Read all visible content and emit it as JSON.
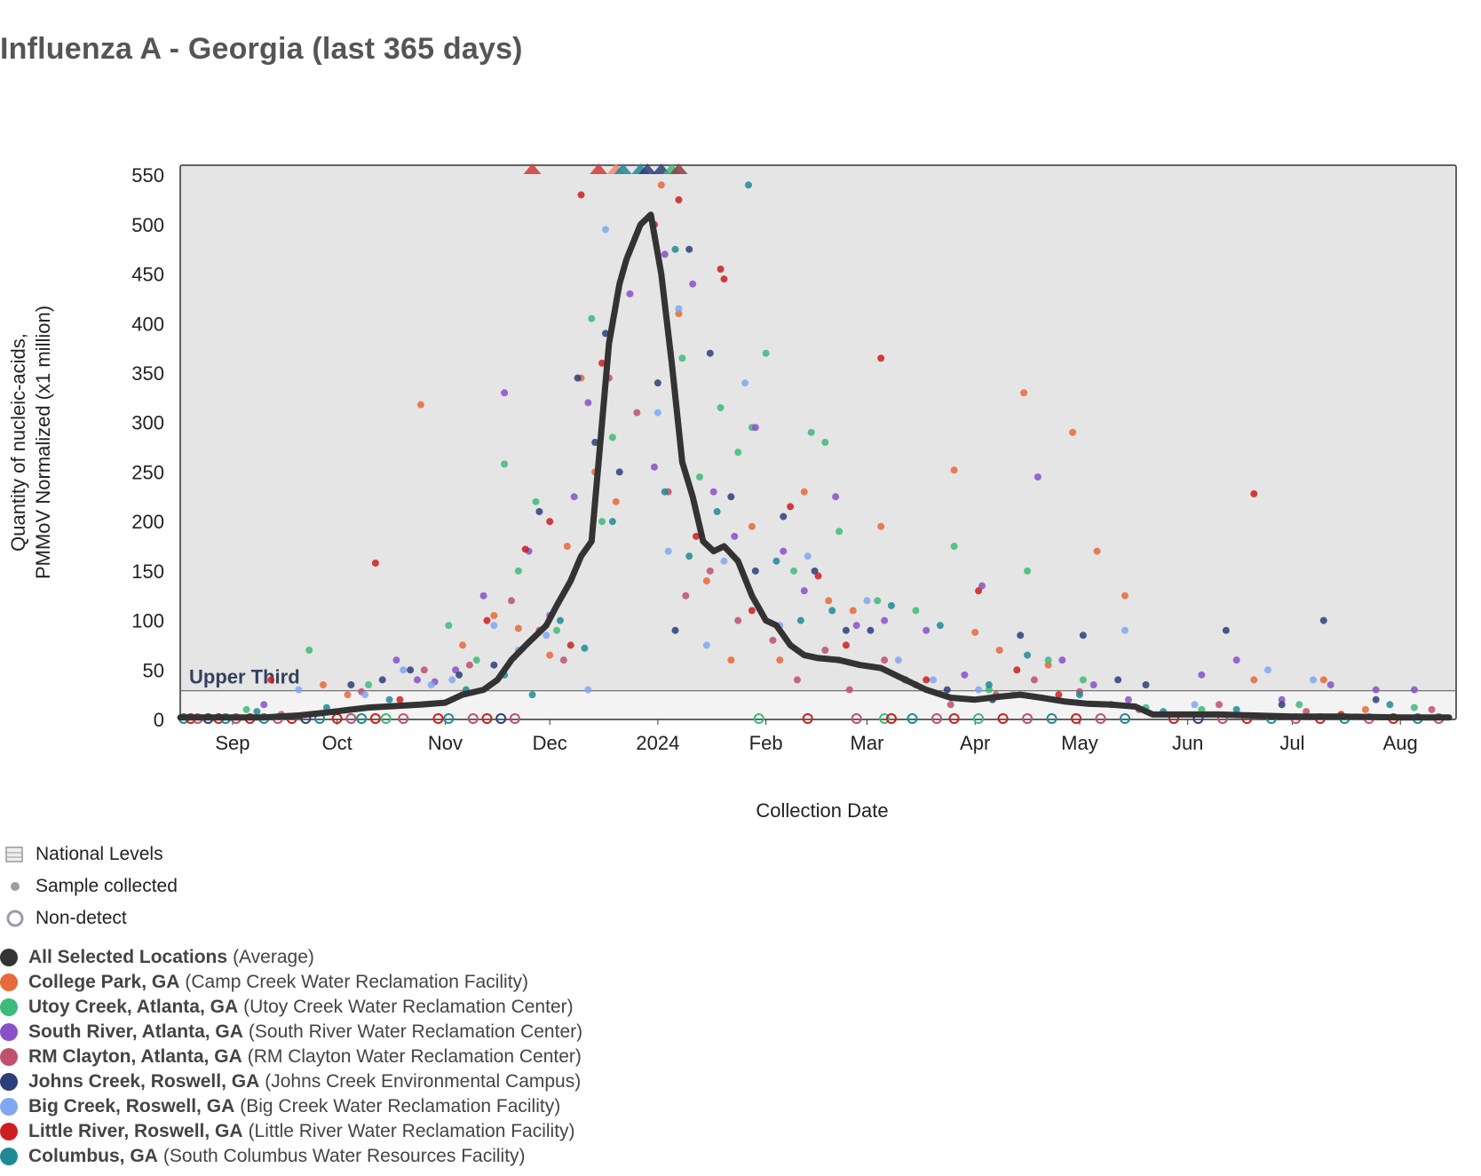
{
  "title": "Influenza A - Georgia (last 365 days)",
  "chart_data": {
    "type": "scatter",
    "xlabel": "Collection Date",
    "ylabel_lines": [
      "Quantity of nucleic-acids,",
      "PMMoV Normalized (x1 million)"
    ],
    "xlim": [
      "2023-08-17",
      "2024-08-17"
    ],
    "ylim": [
      0,
      560
    ],
    "yticks": [
      0,
      50,
      100,
      150,
      200,
      250,
      300,
      350,
      400,
      450,
      500,
      550
    ],
    "xticks": [
      {
        "label": "Sep",
        "date": "2023-09-01"
      },
      {
        "label": "Oct",
        "date": "2023-10-01"
      },
      {
        "label": "Nov",
        "date": "2023-11-01"
      },
      {
        "label": "Dec",
        "date": "2023-12-01"
      },
      {
        "label": "2024",
        "date": "2024-01-01"
      },
      {
        "label": "Feb",
        "date": "2024-02-01"
      },
      {
        "label": "Mar",
        "date": "2024-03-01"
      },
      {
        "label": "Apr",
        "date": "2024-04-01"
      },
      {
        "label": "May",
        "date": "2024-05-01"
      },
      {
        "label": "Jun",
        "date": "2024-06-01"
      },
      {
        "label": "Jul",
        "date": "2024-07-01"
      },
      {
        "label": "Aug",
        "date": "2024-08-01"
      }
    ],
    "national_level_band": {
      "label": "Upper Third",
      "threshold": 29
    },
    "average_line": {
      "name": "All Selected Locations",
      "color": "#333333",
      "x": [
        "2023-08-17",
        "2023-09-10",
        "2023-09-20",
        "2023-09-28",
        "2023-10-05",
        "2023-10-10",
        "2023-10-15",
        "2023-10-25",
        "2023-11-01",
        "2023-11-06",
        "2023-11-12",
        "2023-11-16",
        "2023-11-20",
        "2023-11-25",
        "2023-11-30",
        "2023-12-03",
        "2023-12-07",
        "2023-12-10",
        "2023-12-13",
        "2023-12-16",
        "2023-12-18",
        "2023-12-21",
        "2023-12-23",
        "2023-12-27",
        "2023-12-30",
        "2024-01-02",
        "2024-01-05",
        "2024-01-08",
        "2024-01-11",
        "2024-01-14",
        "2024-01-17",
        "2024-01-20",
        "2024-01-24",
        "2024-01-28",
        "2024-02-01",
        "2024-02-04",
        "2024-02-08",
        "2024-02-12",
        "2024-02-16",
        "2024-02-22",
        "2024-02-28",
        "2024-03-05",
        "2024-03-12",
        "2024-03-18",
        "2024-03-25",
        "2024-04-01",
        "2024-04-08",
        "2024-04-14",
        "2024-04-20",
        "2024-04-27",
        "2024-05-03",
        "2024-05-10",
        "2024-05-17",
        "2024-05-22",
        "2024-06-01",
        "2024-06-10",
        "2024-06-20",
        "2024-07-01",
        "2024-07-15",
        "2024-08-01",
        "2024-08-15"
      ],
      "y": [
        2,
        2,
        4,
        7,
        10,
        12,
        13,
        15,
        17,
        25,
        30,
        40,
        60,
        78,
        95,
        115,
        140,
        165,
        180,
        300,
        380,
        440,
        465,
        500,
        510,
        450,
        360,
        260,
        225,
        180,
        170,
        175,
        160,
        125,
        100,
        95,
        75,
        65,
        62,
        60,
        55,
        52,
        40,
        30,
        22,
        20,
        23,
        25,
        22,
        18,
        16,
        15,
        13,
        5,
        5,
        5,
        4,
        3,
        3,
        2,
        2
      ]
    },
    "above_range_markers": {
      "description_shown": "triangles at top edge",
      "points": [
        {
          "date": "2023-11-26",
          "color": "#d13b3b"
        },
        {
          "date": "2023-12-15",
          "color": "#d13b3b"
        },
        {
          "date": "2023-12-20",
          "color": "#ee8870"
        },
        {
          "date": "2023-12-22",
          "color": "#1f8a95"
        },
        {
          "date": "2023-12-27",
          "color": "#1f8a95"
        },
        {
          "date": "2023-12-29",
          "color": "#2c3e7a"
        },
        {
          "date": "2024-01-02",
          "color": "#2c3e7a"
        },
        {
          "date": "2024-01-05",
          "color": "#3dbb7a"
        },
        {
          "date": "2024-01-07",
          "color": "#8a3f3f"
        }
      ]
    },
    "series": [
      {
        "name": "College Park, GA",
        "color": "#e8693a",
        "x": [
          "2023-09-27",
          "2023-10-04",
          "2023-10-25",
          "2023-11-06",
          "2023-11-15",
          "2023-11-22",
          "2023-12-01",
          "2023-12-06",
          "2023-12-10",
          "2023-12-14",
          "2023-12-20",
          "2024-01-02",
          "2024-01-07",
          "2024-01-15",
          "2024-01-22",
          "2024-01-28",
          "2024-02-05",
          "2024-02-12",
          "2024-02-19",
          "2024-02-26",
          "2024-03-05",
          "2024-03-12",
          "2024-03-26",
          "2024-04-01",
          "2024-04-08",
          "2024-04-15",
          "2024-04-22",
          "2024-04-29",
          "2024-05-06",
          "2024-05-14",
          "2024-06-20",
          "2024-07-10",
          "2024-07-22"
        ],
        "y": [
          35,
          25,
          318,
          75,
          105,
          92,
          65,
          175,
          345,
          250,
          220,
          540,
          410,
          140,
          60,
          195,
          60,
          230,
          120,
          110,
          195,
          40,
          252,
          88,
          70,
          330,
          55,
          290,
          170,
          125,
          40,
          40,
          10
        ]
      },
      {
        "name": "Utoy Creek, Atlanta, GA",
        "color": "#3dbb7a",
        "x": [
          "2023-09-05",
          "2023-09-23",
          "2023-10-10",
          "2023-11-02",
          "2023-11-10",
          "2023-11-18",
          "2023-11-22",
          "2023-11-27",
          "2023-12-03",
          "2023-12-13",
          "2023-12-16",
          "2023-12-19",
          "2024-01-08",
          "2024-01-13",
          "2024-01-19",
          "2024-01-24",
          "2024-01-28",
          "2024-02-01",
          "2024-02-09",
          "2024-02-14",
          "2024-02-18",
          "2024-02-22",
          "2024-03-04",
          "2024-03-15",
          "2024-03-26",
          "2024-04-05",
          "2024-04-16",
          "2024-04-22",
          "2024-05-02",
          "2024-05-20",
          "2024-06-05",
          "2024-07-03",
          "2024-08-05"
        ],
        "y": [
          10,
          70,
          35,
          95,
          60,
          258,
          150,
          220,
          90,
          405,
          200,
          285,
          365,
          245,
          315,
          270,
          295,
          370,
          150,
          290,
          280,
          190,
          120,
          110,
          175,
          30,
          150,
          60,
          40,
          12,
          10,
          15,
          12
        ]
      },
      {
        "name": "South River, Atlanta, GA",
        "color": "#8a50c8",
        "x": [
          "2023-09-10",
          "2023-10-18",
          "2023-10-24",
          "2023-10-29",
          "2023-11-04",
          "2023-11-12",
          "2023-11-18",
          "2023-11-25",
          "2023-12-01",
          "2023-12-08",
          "2023-12-12",
          "2023-12-24",
          "2023-12-31",
          "2024-01-03",
          "2024-01-11",
          "2024-01-17",
          "2024-01-23",
          "2024-01-29",
          "2024-02-06",
          "2024-02-12",
          "2024-02-21",
          "2024-02-27",
          "2024-03-06",
          "2024-03-18",
          "2024-03-29",
          "2024-04-03",
          "2024-04-19",
          "2024-04-26",
          "2024-05-05",
          "2024-05-15",
          "2024-06-05",
          "2024-06-15",
          "2024-06-28",
          "2024-07-12",
          "2024-07-25",
          "2024-08-05"
        ],
        "y": [
          15,
          60,
          40,
          38,
          50,
          125,
          330,
          170,
          105,
          225,
          320,
          430,
          255,
          470,
          440,
          230,
          185,
          295,
          170,
          130,
          225,
          95,
          100,
          90,
          45,
          135,
          245,
          60,
          35,
          20,
          45,
          60,
          20,
          35,
          30,
          30
        ]
      },
      {
        "name": "RM Clayton, Atlanta, GA",
        "color": "#c0506e",
        "x": [
          "2023-09-15",
          "2023-10-08",
          "2023-10-26",
          "2023-11-08",
          "2023-11-20",
          "2023-11-28",
          "2023-12-05",
          "2023-12-18",
          "2023-12-26",
          "2024-01-04",
          "2024-01-09",
          "2024-01-16",
          "2024-01-24",
          "2024-02-03",
          "2024-02-10",
          "2024-02-18",
          "2024-02-25",
          "2024-03-06",
          "2024-03-15",
          "2024-03-25",
          "2024-04-07",
          "2024-04-18",
          "2024-05-01",
          "2024-05-18",
          "2024-06-10",
          "2024-07-05",
          "2024-08-10"
        ],
        "y": [
          5,
          28,
          50,
          55,
          120,
          90,
          60,
          345,
          310,
          230,
          125,
          150,
          100,
          80,
          40,
          70,
          30,
          60,
          35,
          15,
          25,
          40,
          28,
          10,
          15,
          8,
          10
        ]
      },
      {
        "name": "Johns Creek, Roswell, GA",
        "color": "#2c3e7a",
        "x": [
          "2023-10-05",
          "2023-10-14",
          "2023-10-22",
          "2023-11-05",
          "2023-11-15",
          "2023-11-28",
          "2023-12-09",
          "2023-12-14",
          "2023-12-17",
          "2023-12-21",
          "2024-01-01",
          "2024-01-06",
          "2024-01-10",
          "2024-01-16",
          "2024-01-22",
          "2024-01-29",
          "2024-02-06",
          "2024-02-15",
          "2024-02-24",
          "2024-03-02",
          "2024-03-12",
          "2024-03-24",
          "2024-04-06",
          "2024-04-14",
          "2024-05-02",
          "2024-05-12",
          "2024-05-20",
          "2024-06-12",
          "2024-06-28",
          "2024-07-10",
          "2024-07-25"
        ],
        "y": [
          35,
          40,
          50,
          45,
          55,
          210,
          345,
          280,
          390,
          250,
          340,
          90,
          475,
          370,
          225,
          150,
          205,
          150,
          90,
          90,
          40,
          30,
          20,
          85,
          85,
          40,
          35,
          90,
          15,
          100,
          20
        ]
      },
      {
        "name": "Big Creek, Roswell, GA",
        "color": "#7fa8f0",
        "x": [
          "2023-09-20",
          "2023-10-09",
          "2023-10-20",
          "2023-10-28",
          "2023-11-03",
          "2023-11-15",
          "2023-11-22",
          "2023-11-30",
          "2023-12-12",
          "2023-12-17",
          "2024-01-01",
          "2024-01-04",
          "2024-01-07",
          "2024-01-15",
          "2024-01-20",
          "2024-01-26",
          "2024-02-05",
          "2024-02-13",
          "2024-02-22",
          "2024-03-01",
          "2024-03-10",
          "2024-03-20",
          "2024-04-02",
          "2024-04-12",
          "2024-05-14",
          "2024-06-03",
          "2024-06-24",
          "2024-07-07"
        ],
        "y": [
          30,
          25,
          50,
          35,
          40,
          95,
          70,
          85,
          30,
          495,
          310,
          170,
          415,
          75,
          160,
          340,
          95,
          165,
          60,
          120,
          60,
          40,
          30,
          25,
          90,
          15,
          50,
          40
        ]
      },
      {
        "name": "Little River, Roswell, GA",
        "color": "#cc1f1f",
        "x": [
          "2023-09-12",
          "2023-10-12",
          "2023-10-19",
          "2023-11-13",
          "2023-11-24",
          "2023-12-01",
          "2023-12-07",
          "2023-12-10",
          "2023-12-16",
          "2023-12-31",
          "2024-01-07",
          "2024-01-12",
          "2024-01-19",
          "2024-01-20",
          "2024-01-28",
          "2024-02-08",
          "2024-02-16",
          "2024-02-24",
          "2024-03-05",
          "2024-03-18",
          "2024-04-02",
          "2024-04-13",
          "2024-04-25",
          "2024-05-10",
          "2024-06-20",
          "2024-07-15"
        ],
        "y": [
          40,
          158,
          20,
          100,
          172,
          200,
          75,
          530,
          360,
          500,
          525,
          185,
          455,
          445,
          110,
          215,
          145,
          75,
          365,
          40,
          130,
          50,
          25,
          15,
          228,
          5
        ]
      },
      {
        "name": "Columbus, GA",
        "color": "#1f8a95",
        "x": [
          "2023-09-08",
          "2023-09-28",
          "2023-10-16",
          "2023-11-07",
          "2023-11-18",
          "2023-11-26",
          "2023-12-04",
          "2023-12-11",
          "2023-12-19",
          "2024-01-03",
          "2024-01-06",
          "2024-01-10",
          "2024-01-18",
          "2024-01-27",
          "2024-02-04",
          "2024-02-11",
          "2024-02-20",
          "2024-03-08",
          "2024-03-22",
          "2024-04-05",
          "2024-04-16",
          "2024-05-01",
          "2024-05-25",
          "2024-06-15",
          "2024-07-29"
        ],
        "y": [
          8,
          12,
          20,
          30,
          45,
          25,
          100,
          72,
          200,
          230,
          475,
          165,
          210,
          540,
          160,
          100,
          110,
          115,
          95,
          35,
          65,
          25,
          8,
          10,
          15
        ]
      }
    ],
    "non_detects": {
      "dates": [
        "2023-08-18",
        "2023-08-20",
        "2023-08-22",
        "2023-08-25",
        "2023-08-28",
        "2023-08-30",
        "2023-09-02",
        "2023-09-06",
        "2023-09-10",
        "2023-09-14",
        "2023-09-18",
        "2023-09-22",
        "2023-09-26",
        "2023-10-01",
        "2023-10-05",
        "2023-10-08",
        "2023-10-12",
        "2023-10-15",
        "2023-10-20",
        "2023-10-30",
        "2023-11-02",
        "2023-11-09",
        "2023-11-13",
        "2023-11-17",
        "2023-11-21",
        "2024-01-30",
        "2024-02-13",
        "2024-02-27",
        "2024-03-06",
        "2024-03-08",
        "2024-03-14",
        "2024-03-21",
        "2024-03-26",
        "2024-04-02",
        "2024-04-09",
        "2024-04-16",
        "2024-04-23",
        "2024-04-30",
        "2024-05-07",
        "2024-05-14",
        "2024-05-28",
        "2024-06-04",
        "2024-06-11",
        "2024-06-18",
        "2024-06-25",
        "2024-07-02",
        "2024-07-09",
        "2024-07-16",
        "2024-07-23",
        "2024-07-30",
        "2024-08-06",
        "2024-08-12"
      ],
      "colors": [
        "#1f8a95",
        "#cc1f1f",
        "#c0506e",
        "#2c3e7a",
        "#cc1f1f",
        "#1f8a95",
        "#c0506e",
        "#cc1f1f",
        "#1f8a95",
        "#c0506e",
        "#cc1f1f",
        "#2c3e7a",
        "#1f8a95",
        "#cc1f1f",
        "#c0506e",
        "#1f8a95",
        "#cc1f1f",
        "#3dbb7a",
        "#c0506e",
        "#cc1f1f",
        "#1f8a95",
        "#c0506e",
        "#cc1f1f",
        "#2c3e7a",
        "#c0506e",
        "#3dbb7a",
        "#cc1f1f",
        "#c0506e",
        "#3dbb7a",
        "#cc1f1f",
        "#1f8a95",
        "#c0506e",
        "#cc1f1f",
        "#3dbb7a",
        "#cc1f1f",
        "#c0506e",
        "#1f8a95",
        "#cc1f1f",
        "#c0506e",
        "#1f8a95",
        "#cc1f1f",
        "#2c3e7a",
        "#c0506e",
        "#cc1f1f",
        "#1f8a95",
        "#c0506e",
        "#cc1f1f",
        "#1f8a95",
        "#c0506e",
        "#cc1f1f",
        "#1f8a95",
        "#c0506e"
      ]
    }
  },
  "legend": {
    "symbols": [
      {
        "label": "National Levels"
      },
      {
        "label": "Sample collected"
      },
      {
        "label": "Non-detect"
      }
    ],
    "sites": [
      {
        "name": "All Selected Locations",
        "detail": "(Average)",
        "color": "#333333"
      },
      {
        "name": "College Park, GA",
        "detail": "(Camp Creek Water Reclamation Facility)",
        "color": "#e8693a"
      },
      {
        "name": "Utoy Creek, Atlanta, GA",
        "detail": "(Utoy Creek Water Reclamation Center)",
        "color": "#3dbb7a"
      },
      {
        "name": "South River, Atlanta, GA",
        "detail": "(South River Water Reclamation Center)",
        "color": "#8a50c8"
      },
      {
        "name": "RM Clayton, Atlanta, GA",
        "detail": "(RM Clayton Water Reclamation Center)",
        "color": "#c0506e"
      },
      {
        "name": "Johns Creek, Roswell, GA",
        "detail": "(Johns Creek Environmental Campus)",
        "color": "#2c3e7a"
      },
      {
        "name": "Big Creek, Roswell, GA",
        "detail": "(Big Creek Water Reclamation Facility)",
        "color": "#7fa8f0"
      },
      {
        "name": "Little River, Roswell, GA",
        "detail": "(Little River Water Reclamation Facility)",
        "color": "#cc1f1f"
      },
      {
        "name": "Columbus, GA",
        "detail": "(South Columbus Water Resources Facility)",
        "color": "#1f8a95"
      }
    ]
  }
}
